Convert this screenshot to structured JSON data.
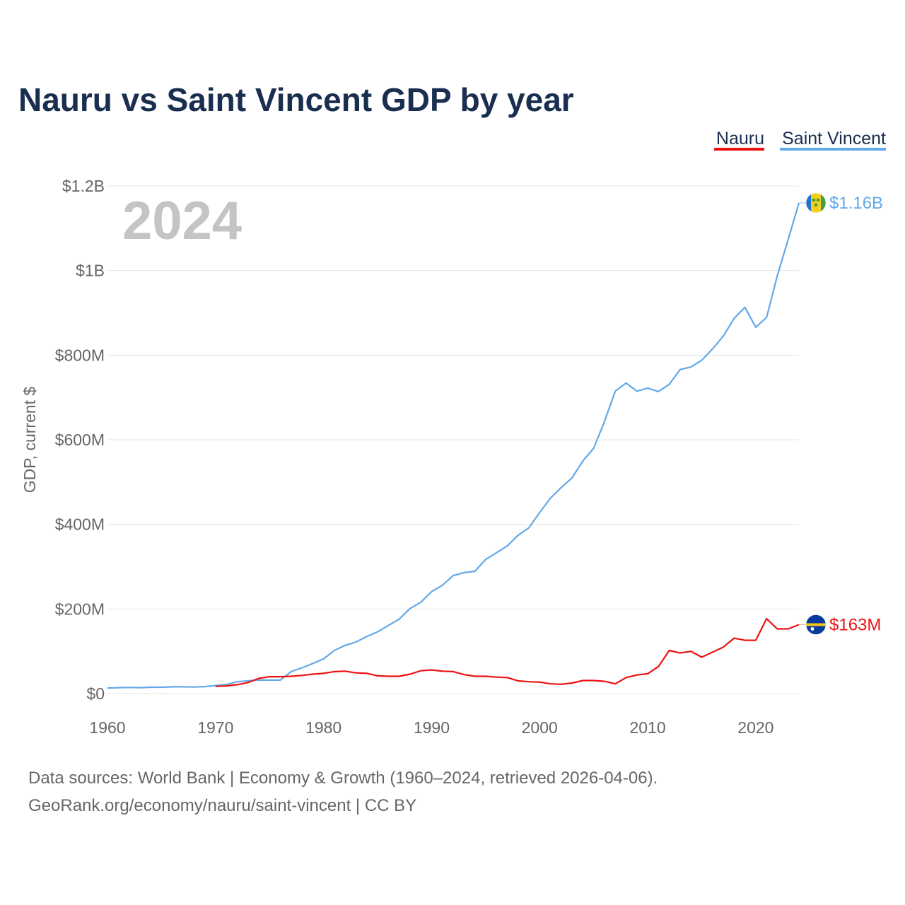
{
  "colors": {
    "nauru": "#ee1111",
    "saint_vincent": "#63a8e8",
    "title": "#1a2e4f",
    "tick": "#666666",
    "grid": "#e6e6e6",
    "watermark": "#c4c4c4"
  },
  "chart_data": {
    "type": "line",
    "title": "Nauru vs Saint Vincent GDP by year",
    "ylabel": "GDP, current $",
    "xlabel": "",
    "year_watermark": "2024",
    "xlim": [
      1960,
      2024
    ],
    "ylim": [
      0,
      1200000000
    ],
    "x_ticks": [
      1960,
      1970,
      1980,
      1990,
      2000,
      2010,
      2020
    ],
    "x_tick_labels": [
      "1960",
      "1970",
      "1980",
      "1990",
      "2000",
      "2010",
      "2020"
    ],
    "y_ticks": [
      0,
      200000000,
      400000000,
      600000000,
      800000000,
      1000000000,
      1200000000
    ],
    "y_tick_labels": [
      "$0",
      "$200M",
      "$400M",
      "$600M",
      "$800M",
      "$1B",
      "$1.2B"
    ],
    "legend": {
      "placement": "top-right",
      "entries": [
        "Nauru",
        "Saint Vincent"
      ]
    },
    "series": [
      {
        "name": "Nauru",
        "key": "nauru",
        "end_label": "$163M",
        "flag": "nauru-flag",
        "x": [
          1970,
          1971,
          1972,
          1973,
          1974,
          1975,
          1976,
          1977,
          1978,
          1979,
          1980,
          1981,
          1982,
          1983,
          1984,
          1985,
          1986,
          1987,
          1988,
          1989,
          1990,
          1991,
          1992,
          1993,
          1994,
          1995,
          1996,
          1997,
          1998,
          1999,
          2000,
          2001,
          2002,
          2003,
          2004,
          2005,
          2006,
          2007,
          2008,
          2009,
          2010,
          2011,
          2012,
          2013,
          2014,
          2015,
          2016,
          2017,
          2018,
          2019,
          2020,
          2021,
          2022,
          2023,
          2024
        ],
        "values": [
          17000000,
          18000000,
          21000000,
          26000000,
          36000000,
          40000000,
          40000000,
          41000000,
          43000000,
          46000000,
          48000000,
          52000000,
          53000000,
          49000000,
          48000000,
          42000000,
          41000000,
          41000000,
          46000000,
          54000000,
          56000000,
          53000000,
          52000000,
          45000000,
          41000000,
          41000000,
          39000000,
          38000000,
          30000000,
          28000000,
          27000000,
          23000000,
          22000000,
          25000000,
          31000000,
          31000000,
          29000000,
          23000000,
          38000000,
          44000000,
          47000000,
          64000000,
          102000000,
          96000000,
          100000000,
          86000000,
          98000000,
          110000000,
          131000000,
          126000000,
          126000000,
          177000000,
          153000000,
          153000000,
          163000000
        ]
      },
      {
        "name": "Saint Vincent",
        "key": "saint_vincent",
        "end_label": "$1.16B",
        "flag": "saint-vincent-flag",
        "x": [
          1960,
          1961,
          1962,
          1963,
          1964,
          1965,
          1966,
          1967,
          1968,
          1969,
          1970,
          1971,
          1972,
          1973,
          1974,
          1975,
          1976,
          1977,
          1978,
          1979,
          1980,
          1981,
          1982,
          1983,
          1984,
          1985,
          1986,
          1987,
          1988,
          1989,
          1990,
          1991,
          1992,
          1993,
          1994,
          1995,
          1996,
          1997,
          1998,
          1999,
          2000,
          2001,
          2002,
          2003,
          2004,
          2005,
          2006,
          2007,
          2008,
          2009,
          2010,
          2011,
          2012,
          2013,
          2014,
          2015,
          2016,
          2017,
          2018,
          2019,
          2020,
          2021,
          2022,
          2023,
          2024
        ],
        "values": [
          13000000,
          14000000,
          14500000,
          14000000,
          15000000,
          15000000,
          16000000,
          16000000,
          15500000,
          16500000,
          19000000,
          21000000,
          28000000,
          30000000,
          32000000,
          32000000,
          32000000,
          52000000,
          61000000,
          71000000,
          82000000,
          102000000,
          114000000,
          122000000,
          135000000,
          146000000,
          161000000,
          176000000,
          201000000,
          216000000,
          241000000,
          256000000,
          279000000,
          286000000,
          289000000,
          317000000,
          333000000,
          349000000,
          374000000,
          392000000,
          428000000,
          462000000,
          487000000,
          510000000,
          550000000,
          580000000,
          643000000,
          715000000,
          734000000,
          715000000,
          722000000,
          714000000,
          731000000,
          766000000,
          772000000,
          788000000,
          815000000,
          845000000,
          887000000,
          913000000,
          866000000,
          889000000,
          988000000,
          1073000000,
          1160000000
        ]
      }
    ]
  },
  "source": {
    "line1": "Data sources: World Bank | Economy & Growth (1960–2024, retrieved 2026-04-06).",
    "line2": "GeoRank.org/economy/nauru/saint-vincent | CC BY"
  }
}
